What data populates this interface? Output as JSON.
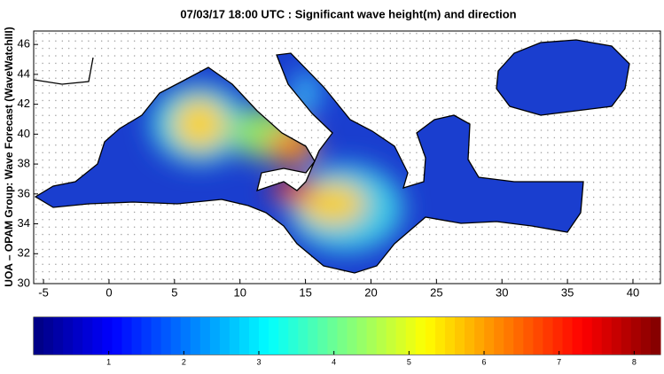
{
  "chart_data": {
    "type": "map",
    "title": "07/03/17 18:00 UTC : Significant wave height(m) and direction",
    "y_label": "UOA – OPAM Group: Wave Forecast  (WaveWatchIII)",
    "xlim": [
      -5.75,
      42.1
    ],
    "xticks": [
      -5,
      0,
      5,
      10,
      15,
      20,
      25,
      30,
      35,
      40
    ],
    "ylim": [
      30,
      46.9
    ],
    "yticks": [
      30,
      32,
      34,
      36,
      38,
      40,
      42,
      44,
      46
    ],
    "colormap": "jet",
    "clim": [
      0,
      8.35
    ],
    "cticks": [
      1,
      2,
      3,
      4,
      5,
      6,
      7,
      8
    ]
  }
}
